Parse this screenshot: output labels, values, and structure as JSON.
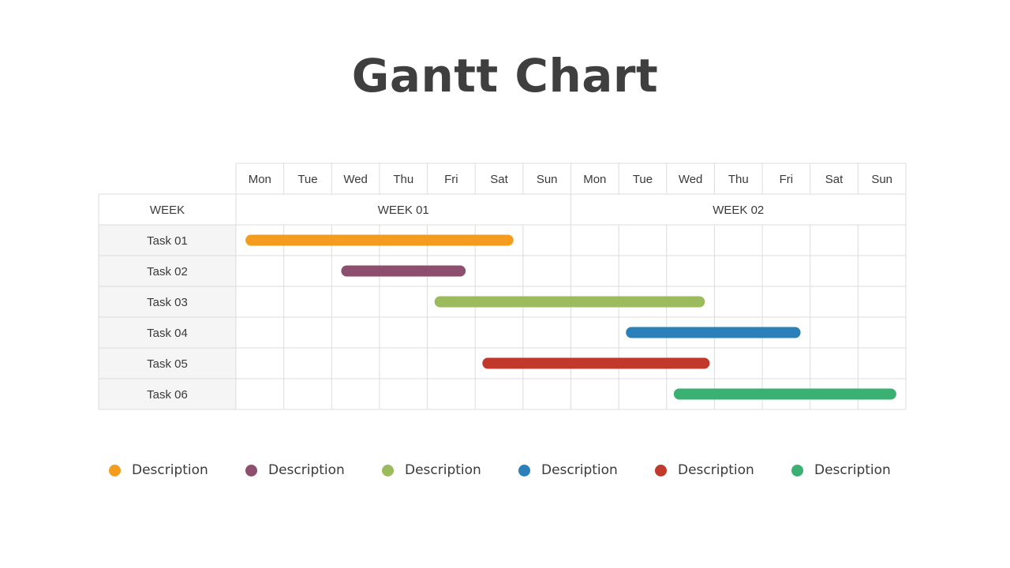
{
  "slide": {
    "title": "Gantt Chart"
  },
  "chart_data": {
    "type": "gantt",
    "row_header": "WEEK",
    "weeks": [
      "WEEK 01",
      "WEEK 02"
    ],
    "days": [
      "Mon",
      "Tue",
      "Wed",
      "Thu",
      "Fri",
      "Sat",
      "Sun",
      "Mon",
      "Tue",
      "Wed",
      "Thu",
      "Fri",
      "Sat",
      "Sun"
    ],
    "tasks": [
      {
        "label": "Task 01",
        "start": 0.2,
        "end": 5.8,
        "color": "#F39C1E"
      },
      {
        "label": "Task 02",
        "start": 2.2,
        "end": 4.8,
        "color": "#8E4E6E"
      },
      {
        "label": "Task 03",
        "start": 4.15,
        "end": 9.8,
        "color": "#9BBB5C"
      },
      {
        "label": "Task 04",
        "start": 8.15,
        "end": 11.8,
        "color": "#2C80B9"
      },
      {
        "label": "Task 05",
        "start": 5.15,
        "end": 9.9,
        "color": "#C0392B"
      },
      {
        "label": "Task 06",
        "start": 9.15,
        "end": 13.8,
        "color": "#3AB072"
      }
    ]
  },
  "legend": [
    {
      "label": "Description",
      "color": "#F39C1E"
    },
    {
      "label": "Description",
      "color": "#8E4E6E"
    },
    {
      "label": "Description",
      "color": "#9BBB5C"
    },
    {
      "label": "Description",
      "color": "#2C80B9"
    },
    {
      "label": "Description",
      "color": "#C0392B"
    },
    {
      "label": "Description",
      "color": "#3AB072"
    }
  ]
}
